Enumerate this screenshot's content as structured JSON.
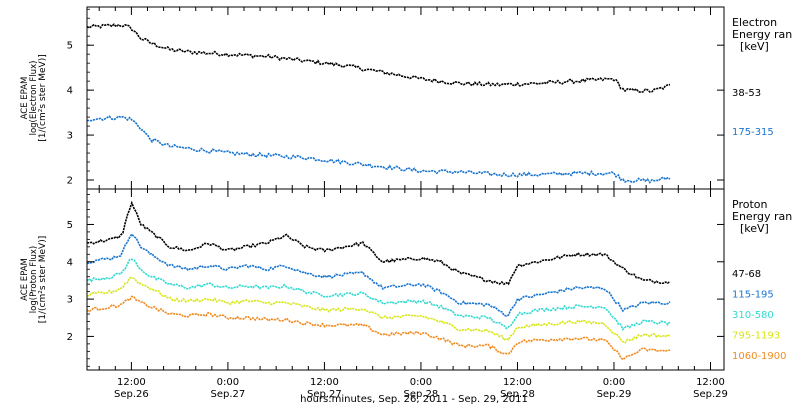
{
  "figure": {
    "xlabel": "hours:minutes, Sep. 26, 2011 - Sep. 29, 2011",
    "xticks": [
      {
        "t": 0.5,
        "time": "12:00",
        "date": "Sep.26"
      },
      {
        "t": 1.0,
        "time": "0:00",
        "date": "Sep.27"
      },
      {
        "t": 1.5,
        "time": "12:00",
        "date": "Sep.27"
      },
      {
        "t": 2.0,
        "time": "0:00",
        "date": "Sep.28"
      },
      {
        "t": 2.5,
        "time": "12:00",
        "date": "Sep.28"
      },
      {
        "t": 3.0,
        "time": "0:00",
        "date": "Sep.29"
      },
      {
        "t": 3.5,
        "time": "12:00",
        "date": "Sep.29"
      }
    ],
    "xlim": [
      0.27,
      3.57
    ],
    "data_end": 3.29
  },
  "chart_data": [
    {
      "type": "line",
      "panel": "electron",
      "ylabel_lines": [
        "ACE EPAM",
        "log(Electron Flux)",
        "[1/(cm²s ster MeV)]"
      ],
      "ylim": [
        1.8,
        5.85
      ],
      "yticks": [
        2,
        3,
        4,
        5
      ],
      "legend_title_lines": [
        "Electron",
        "Energy ran",
        "[keV]"
      ],
      "series": [
        {
          "name": "38-53",
          "color": "#000000",
          "points": [
            [
              0.27,
              5.4
            ],
            [
              0.45,
              5.45
            ],
            [
              0.5,
              5.38
            ],
            [
              0.55,
              5.15
            ],
            [
              0.6,
              5.05
            ],
            [
              0.7,
              4.9
            ],
            [
              0.8,
              4.85
            ],
            [
              1.0,
              4.8
            ],
            [
              1.2,
              4.75
            ],
            [
              1.4,
              4.65
            ],
            [
              1.6,
              4.55
            ],
            [
              1.8,
              4.4
            ],
            [
              2.0,
              4.25
            ],
            [
              2.2,
              4.15
            ],
            [
              2.4,
              4.12
            ],
            [
              2.6,
              4.15
            ],
            [
              2.8,
              4.2
            ],
            [
              3.0,
              4.25
            ],
            [
              3.05,
              4.0
            ],
            [
              3.2,
              3.98
            ],
            [
              3.29,
              4.1
            ]
          ]
        },
        {
          "name": "175-315",
          "color": "#1a75cf",
          "points": [
            [
              0.27,
              3.35
            ],
            [
              0.45,
              3.4
            ],
            [
              0.5,
              3.35
            ],
            [
              0.55,
              3.15
            ],
            [
              0.6,
              2.9
            ],
            [
              0.7,
              2.75
            ],
            [
              0.8,
              2.7
            ],
            [
              1.0,
              2.6
            ],
            [
              1.2,
              2.55
            ],
            [
              1.4,
              2.5
            ],
            [
              1.6,
              2.4
            ],
            [
              1.8,
              2.3
            ],
            [
              2.0,
              2.2
            ],
            [
              2.2,
              2.18
            ],
            [
              2.4,
              2.12
            ],
            [
              2.6,
              2.12
            ],
            [
              2.8,
              2.15
            ],
            [
              3.0,
              2.15
            ],
            [
              3.05,
              2.0
            ],
            [
              3.2,
              1.98
            ],
            [
              3.29,
              2.05
            ]
          ]
        }
      ]
    },
    {
      "type": "line",
      "panel": "proton",
      "ylabel_lines": [
        "ACE EPAM",
        "log(Proton Flux)",
        "[1/(cm²s ster MeV)]"
      ],
      "ylim": [
        1.1,
        5.95
      ],
      "yticks": [
        2,
        3,
        4,
        5
      ],
      "legend_title_lines": [
        "Proton",
        "Energy ran",
        "[keV]"
      ],
      "series": [
        {
          "name": "47-68",
          "color": "#000000",
          "points": [
            [
              0.27,
              4.5
            ],
            [
              0.4,
              4.6
            ],
            [
              0.45,
              4.7
            ],
            [
              0.5,
              5.6
            ],
            [
              0.55,
              5.0
            ],
            [
              0.6,
              4.8
            ],
            [
              0.7,
              4.4
            ],
            [
              0.8,
              4.3
            ],
            [
              0.9,
              4.5
            ],
            [
              1.0,
              4.3
            ],
            [
              1.1,
              4.4
            ],
            [
              1.2,
              4.5
            ],
            [
              1.3,
              4.7
            ],
            [
              1.4,
              4.4
            ],
            [
              1.5,
              4.3
            ],
            [
              1.7,
              4.5
            ],
            [
              1.8,
              4.0
            ],
            [
              2.0,
              4.1
            ],
            [
              2.1,
              4.0
            ],
            [
              2.2,
              3.7
            ],
            [
              2.35,
              3.5
            ],
            [
              2.45,
              3.4
            ],
            [
              2.5,
              3.9
            ],
            [
              2.6,
              4.0
            ],
            [
              2.8,
              4.2
            ],
            [
              2.95,
              4.2
            ],
            [
              3.05,
              3.8
            ],
            [
              3.15,
              3.5
            ],
            [
              3.29,
              3.45
            ]
          ]
        },
        {
          "name": "115-195",
          "color": "#1a75cf",
          "points": [
            [
              0.27,
              4.0
            ],
            [
              0.4,
              4.1
            ],
            [
              0.45,
              4.2
            ],
            [
              0.5,
              4.8
            ],
            [
              0.55,
              4.4
            ],
            [
              0.6,
              4.2
            ],
            [
              0.7,
              3.9
            ],
            [
              0.8,
              3.8
            ],
            [
              0.9,
              3.9
            ],
            [
              1.0,
              3.8
            ],
            [
              1.1,
              3.9
            ],
            [
              1.2,
              3.8
            ],
            [
              1.3,
              3.9
            ],
            [
              1.4,
              3.7
            ],
            [
              1.5,
              3.6
            ],
            [
              1.7,
              3.7
            ],
            [
              1.8,
              3.3
            ],
            [
              2.0,
              3.4
            ],
            [
              2.1,
              3.2
            ],
            [
              2.2,
              2.9
            ],
            [
              2.35,
              2.85
            ],
            [
              2.45,
              2.55
            ],
            [
              2.5,
              3.0
            ],
            [
              2.6,
              3.1
            ],
            [
              2.8,
              3.3
            ],
            [
              2.95,
              3.3
            ],
            [
              3.05,
              2.7
            ],
            [
              3.15,
              2.9
            ],
            [
              3.29,
              2.9
            ]
          ]
        },
        {
          "name": "310-580",
          "color": "#33d9d0",
          "points": [
            [
              0.27,
              3.5
            ],
            [
              0.4,
              3.6
            ],
            [
              0.45,
              3.7
            ],
            [
              0.5,
              4.1
            ],
            [
              0.55,
              3.8
            ],
            [
              0.6,
              3.6
            ],
            [
              0.7,
              3.4
            ],
            [
              0.8,
              3.3
            ],
            [
              0.9,
              3.4
            ],
            [
              1.0,
              3.3
            ],
            [
              1.1,
              3.35
            ],
            [
              1.2,
              3.3
            ],
            [
              1.3,
              3.35
            ],
            [
              1.4,
              3.2
            ],
            [
              1.5,
              3.1
            ],
            [
              1.7,
              3.15
            ],
            [
              1.8,
              2.9
            ],
            [
              2.0,
              2.95
            ],
            [
              2.1,
              2.8
            ],
            [
              2.2,
              2.55
            ],
            [
              2.35,
              2.5
            ],
            [
              2.45,
              2.2
            ],
            [
              2.5,
              2.6
            ],
            [
              2.6,
              2.7
            ],
            [
              2.8,
              2.8
            ],
            [
              2.95,
              2.8
            ],
            [
              3.05,
              2.2
            ],
            [
              3.15,
              2.4
            ],
            [
              3.29,
              2.35
            ]
          ]
        },
        {
          "name": "795-1193",
          "color": "#d7e61a",
          "points": [
            [
              0.27,
              3.1
            ],
            [
              0.4,
              3.2
            ],
            [
              0.45,
              3.3
            ],
            [
              0.5,
              3.6
            ],
            [
              0.55,
              3.4
            ],
            [
              0.6,
              3.3
            ],
            [
              0.7,
              3.0
            ],
            [
              0.8,
              2.95
            ],
            [
              0.9,
              3.0
            ],
            [
              1.0,
              2.9
            ],
            [
              1.1,
              2.95
            ],
            [
              1.2,
              2.9
            ],
            [
              1.3,
              2.9
            ],
            [
              1.4,
              2.8
            ],
            [
              1.5,
              2.7
            ],
            [
              1.7,
              2.75
            ],
            [
              1.8,
              2.5
            ],
            [
              2.0,
              2.55
            ],
            [
              2.1,
              2.4
            ],
            [
              2.2,
              2.2
            ],
            [
              2.35,
              2.15
            ],
            [
              2.45,
              1.9
            ],
            [
              2.5,
              2.25
            ],
            [
              2.6,
              2.3
            ],
            [
              2.8,
              2.4
            ],
            [
              2.95,
              2.35
            ],
            [
              3.05,
              1.85
            ],
            [
              3.15,
              2.05
            ],
            [
              3.29,
              2.0
            ]
          ]
        },
        {
          "name": "1060-1900",
          "color": "#f08c24",
          "points": [
            [
              0.27,
              2.7
            ],
            [
              0.4,
              2.8
            ],
            [
              0.45,
              2.85
            ],
            [
              0.5,
              3.05
            ],
            [
              0.55,
              2.9
            ],
            [
              0.6,
              2.8
            ],
            [
              0.7,
              2.6
            ],
            [
              0.8,
              2.55
            ],
            [
              0.9,
              2.6
            ],
            [
              1.0,
              2.5
            ],
            [
              1.1,
              2.5
            ],
            [
              1.2,
              2.45
            ],
            [
              1.3,
              2.45
            ],
            [
              1.4,
              2.35
            ],
            [
              1.5,
              2.3
            ],
            [
              1.7,
              2.3
            ],
            [
              1.8,
              2.05
            ],
            [
              2.0,
              2.1
            ],
            [
              2.1,
              1.95
            ],
            [
              2.2,
              1.75
            ],
            [
              2.35,
              1.75
            ],
            [
              2.45,
              1.5
            ],
            [
              2.5,
              1.85
            ],
            [
              2.6,
              1.9
            ],
            [
              2.8,
              1.95
            ],
            [
              2.95,
              1.9
            ],
            [
              3.05,
              1.4
            ],
            [
              3.15,
              1.65
            ],
            [
              3.29,
              1.6
            ]
          ]
        }
      ]
    }
  ]
}
